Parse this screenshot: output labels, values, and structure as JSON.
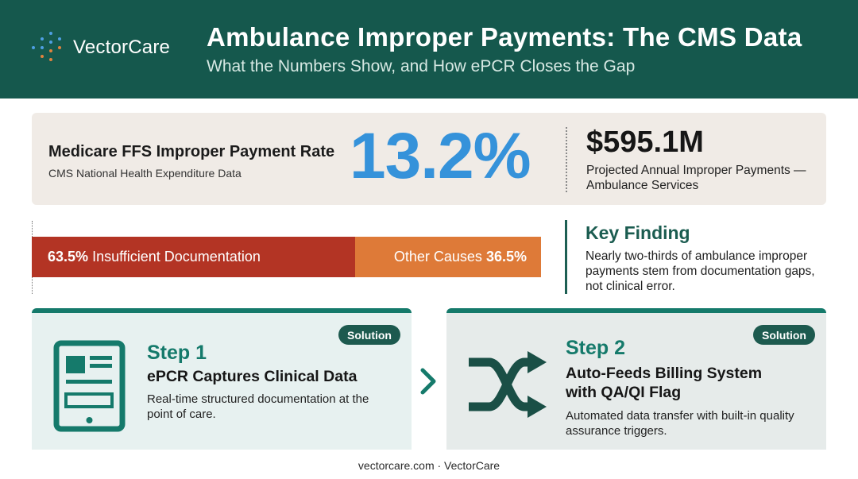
{
  "brand": {
    "name": "VectorCare",
    "logo_icon": "dot-grid-logo-icon"
  },
  "header": {
    "title": "Ambulance Improper Payments: The CMS Data",
    "subtitle": "What the Numbers Show, and How ePCR Closes the Gap"
  },
  "improper_rate": {
    "label": "Medicare FFS Improper Payment Rate",
    "source": "CMS National Health Expenditure Data",
    "value": "13.2%"
  },
  "improper_amount": {
    "value": "$595.1M",
    "label": "Projected Annual Improper Payments — Ambulance Services"
  },
  "breakdown": {
    "segments": [
      {
        "percent_label": "63.5%",
        "label": "Insufficient Documentation",
        "share": 63.5,
        "color": "#b33424"
      },
      {
        "percent_label": "36.5%",
        "label": "Other Causes",
        "share": 36.5,
        "color": "#de7a38"
      }
    ]
  },
  "key_finding": {
    "title": "Key Finding",
    "text": "Nearly two-thirds of ambulance improper payments stem from documentation gaps, not clinical error."
  },
  "steps": [
    {
      "badge": "Solution",
      "number": "Step 1",
      "title": "ePCR Captures Clinical Data",
      "description": "Real-time structured documentation at the point of care.",
      "icon": "tablet-icon"
    },
    {
      "badge": "Solution",
      "number": "Step 2",
      "title": "Auto-Feeds Billing System with QA/QI Flag",
      "description": "Automated data transfer with built-in quality assurance triggers.",
      "icon": "shuffle-icon"
    }
  ],
  "connector_icon": "chevron-right-icon",
  "footer": {
    "text": "vectorcare.com · VectorCare"
  },
  "colors": {
    "header_bg": "#15584d",
    "accent_blue": "#3592da",
    "accent_teal": "#157a6b",
    "documentation_red": "#b33424",
    "other_orange": "#de7a38"
  }
}
